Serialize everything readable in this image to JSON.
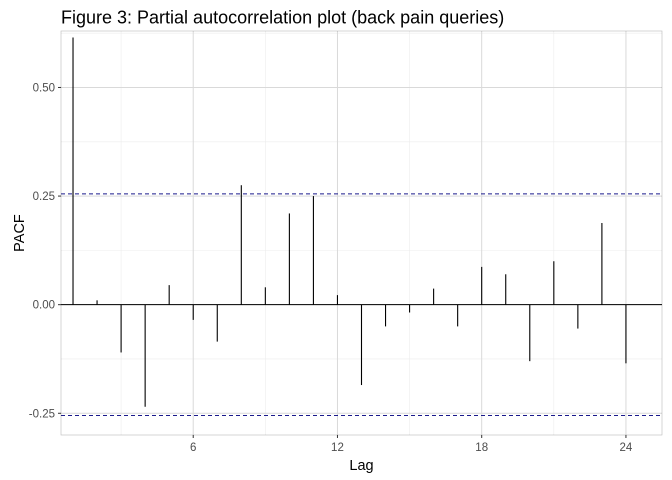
{
  "chart_data": {
    "type": "bar",
    "title": "Figure 3: Partial autocorrelation plot (back pain queries)",
    "xlabel": "Lag",
    "ylabel": "PACF",
    "xlim": [
      0.5,
      25.5
    ],
    "ylim": [
      -0.3,
      0.63
    ],
    "x_ticks": [
      6,
      12,
      18,
      24
    ],
    "x_tick_labels": [
      "6",
      "12",
      "18",
      "24"
    ],
    "y_ticks": [
      -0.25,
      0,
      0.25,
      0.5
    ],
    "y_tick_labels": [
      "-0.25",
      "0.00",
      "0.25",
      "0.50"
    ],
    "grid": true,
    "confidence_bounds": [
      0.255,
      -0.255
    ],
    "lags": [
      1,
      2,
      3,
      4,
      5,
      6,
      7,
      8,
      9,
      10,
      11,
      12,
      13,
      14,
      15,
      16,
      17,
      18,
      19,
      20,
      21,
      22,
      23,
      24
    ],
    "values": [
      0.615,
      0.01,
      -0.11,
      -0.235,
      0.045,
      -0.035,
      -0.085,
      0.275,
      0.04,
      0.21,
      0.25,
      0.022,
      -0.185,
      -0.05,
      -0.018,
      0.037,
      -0.05,
      0.087,
      0.07,
      -0.13,
      0.1,
      -0.055,
      0.188,
      -0.135
    ],
    "colors": {
      "bar": "#000000",
      "zero_line": "#000000",
      "bound_line": "#1a1a8c",
      "grid_major": "#d9d9d9",
      "grid_minor": "#ececec",
      "panel_border": "#333333"
    }
  }
}
